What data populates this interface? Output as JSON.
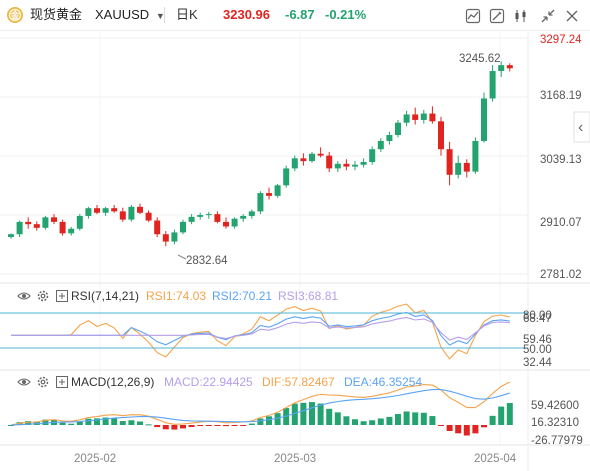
{
  "header": {
    "name": "现货黄金",
    "symbol": "XAUUSD",
    "interval": "日K",
    "last": "3230.96",
    "change": "-6.87",
    "change_pct": "-0.21%"
  },
  "colors": {
    "up": "#22a36f",
    "down": "#e0241f",
    "blue_line": "#5ba3f5",
    "orange_line": "#f5a34a",
    "purple_line": "#b59ee8",
    "border": "#4db6d6"
  },
  "icons": [
    "chart-type-icon",
    "drawing-icon",
    "candlestick-icon",
    "collapse-icon",
    "close-icon",
    "settings-icon",
    "eye-icon",
    "sidebar-arrow-icon"
  ],
  "main_axis": {
    "labels": [
      "3297.24",
      "3168.19",
      "3039.13",
      "2910.07",
      "2781.02"
    ],
    "annot_high": "3245.62",
    "annot_low": "2832.64",
    "arrow": "‹"
  },
  "rsi": {
    "title": "RSI(7,14,21)",
    "v1": "RSI1:74.03",
    "v2": "RSI2:70.21",
    "v3": "RSI3:68.81",
    "axis": [
      "80.00",
      "68.47",
      "59.46",
      "50.00",
      "32.44"
    ]
  },
  "macd": {
    "title": "MACD(12,26,9)",
    "macd": "MACD:22.94425",
    "dif": "DIF:57.82467",
    "dea": "DEA:46.35254",
    "axis": [
      "59.42600",
      "16.32310",
      "-26.77979"
    ]
  },
  "dates": [
    "2025-02",
    "2025-03",
    "2025-04"
  ],
  "chart_data": {
    "type": "candlestick",
    "symbol": "XAUUSD",
    "interval": "日K",
    "y_axis": [
      2781.02,
      2910.07,
      3039.13,
      3168.19,
      3297.24
    ],
    "x_ticks": [
      "2025-02",
      "2025-03",
      "2025-04"
    ],
    "high_label": 3245.62,
    "low_label": 2832.64,
    "candles": [
      [
        2862,
        2870,
        2858,
        2868
      ],
      [
        2868,
        2898,
        2862,
        2895
      ],
      [
        2895,
        2905,
        2880,
        2890
      ],
      [
        2890,
        2896,
        2876,
        2882
      ],
      [
        2882,
        2908,
        2878,
        2905
      ],
      [
        2905,
        2912,
        2890,
        2895
      ],
      [
        2895,
        2900,
        2865,
        2870
      ],
      [
        2870,
        2884,
        2865,
        2880
      ],
      [
        2880,
        2912,
        2876,
        2908
      ],
      [
        2908,
        2928,
        2902,
        2925
      ],
      [
        2925,
        2932,
        2912,
        2915
      ],
      [
        2915,
        2928,
        2908,
        2925
      ],
      [
        2925,
        2932,
        2915,
        2918
      ],
      [
        2918,
        2926,
        2895,
        2900
      ],
      [
        2900,
        2932,
        2896,
        2928
      ],
      [
        2928,
        2935,
        2912,
        2915
      ],
      [
        2915,
        2920,
        2895,
        2898
      ],
      [
        2898,
        2905,
        2862,
        2868
      ],
      [
        2868,
        2875,
        2842,
        2852
      ],
      [
        2852,
        2878,
        2846,
        2872
      ],
      [
        2872,
        2900,
        2868,
        2895
      ],
      [
        2895,
        2912,
        2890,
        2906
      ],
      [
        2906,
        2915,
        2900,
        2910
      ],
      [
        2910,
        2917,
        2902,
        2912
      ],
      [
        2912,
        2918,
        2892,
        2895
      ],
      [
        2895,
        2905,
        2880,
        2885
      ],
      [
        2885,
        2905,
        2880,
        2902
      ],
      [
        2902,
        2912,
        2895,
        2908
      ],
      [
        2908,
        2922,
        2902,
        2918
      ],
      [
        2918,
        2962,
        2912,
        2958
      ],
      [
        2958,
        2970,
        2944,
        2952
      ],
      [
        2952,
        2978,
        2948,
        2975
      ],
      [
        2975,
        3018,
        2970,
        3012
      ],
      [
        3012,
        3040,
        3006,
        3034
      ],
      [
        3034,
        3045,
        3018,
        3028
      ],
      [
        3028,
        3048,
        3024,
        3044
      ],
      [
        3044,
        3058,
        3036,
        3040
      ],
      [
        3040,
        3048,
        3004,
        3012
      ],
      [
        3012,
        3028,
        3004,
        3022
      ],
      [
        3022,
        3032,
        3008,
        3016
      ],
      [
        3016,
        3028,
        3008,
        3020
      ],
      [
        3020,
        3034,
        3014,
        3026
      ],
      [
        3026,
        3060,
        3020,
        3054
      ],
      [
        3054,
        3078,
        3048,
        3072
      ],
      [
        3072,
        3092,
        3064,
        3085
      ],
      [
        3085,
        3118,
        3080,
        3112
      ],
      [
        3112,
        3138,
        3104,
        3130
      ],
      [
        3130,
        3145,
        3108,
        3118
      ],
      [
        3118,
        3140,
        3110,
        3132
      ],
      [
        3132,
        3148,
        3110,
        3115
      ],
      [
        3115,
        3125,
        3040,
        3054
      ],
      [
        3054,
        3070,
        2975,
        2998
      ],
      [
        2998,
        3040,
        2990,
        3024
      ],
      [
        3024,
        3032,
        2992,
        3005
      ],
      [
        3005,
        3080,
        3000,
        3072
      ],
      [
        3072,
        3178,
        3068,
        3165
      ],
      [
        3165,
        3238,
        3158,
        3225
      ],
      [
        3225,
        3245.62,
        3212,
        3237.83
      ],
      [
        3237.83,
        3242,
        3224,
        3230.96
      ]
    ]
  }
}
